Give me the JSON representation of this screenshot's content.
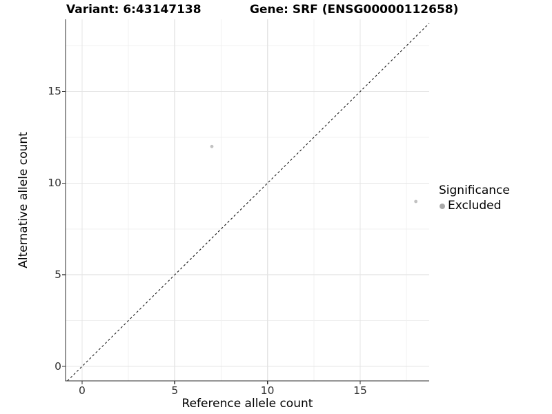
{
  "header": {
    "variant_title": "Variant: 6:43147138",
    "gene_title": "Gene: SRF (ENSG00000112658)"
  },
  "axes": {
    "x": {
      "label": "Reference allele count",
      "ticks": [
        "0",
        "5",
        "10",
        "15"
      ]
    },
    "y": {
      "label": "Alternative allele count",
      "ticks": [
        "0",
        "5",
        "10",
        "15"
      ]
    }
  },
  "legend": {
    "title": "Significance",
    "items": [
      {
        "label": "Excluded",
        "color": "#a8a8a8"
      }
    ]
  },
  "chart_data": {
    "type": "scatter",
    "title": "Variant: 6:43147138 — Gene: SRF (ENSG00000112658)",
    "xlabel": "Reference allele count",
    "ylabel": "Alternative allele count",
    "series": [
      {
        "name": "Excluded",
        "color": "#c2c2c2",
        "points": [
          [
            7,
            12
          ],
          [
            18,
            9
          ]
        ]
      }
    ],
    "xlim": [
      -0.89,
      18.72
    ],
    "ylim": [
      -0.79,
      18.94
    ],
    "x_major_ticks": [
      0,
      5,
      10,
      15
    ],
    "y_major_ticks": [
      0,
      5,
      10,
      15
    ],
    "x_minor_ticks": [
      2.5,
      7.5,
      12.5,
      17.5
    ],
    "y_minor_ticks": [
      2.5,
      7.5,
      12.5,
      17.5
    ],
    "identity_line": {
      "slope": 1,
      "intercept": 0,
      "style": "dashed",
      "color": "#1a1a1a"
    },
    "grid": "major+minor",
    "legend_position": "right",
    "legend_title": "Significance",
    "legend_entries": [
      "Excluded"
    ]
  },
  "colors": {
    "grid_major": "#e4e4e4",
    "grid_minor": "#f0f0f0",
    "axis_line": "#2b2b2b",
    "tick_mark": "#2b2b2b",
    "point": "#c2c2c2",
    "legend_point": "#a8a8a8",
    "background": "#ffffff"
  }
}
